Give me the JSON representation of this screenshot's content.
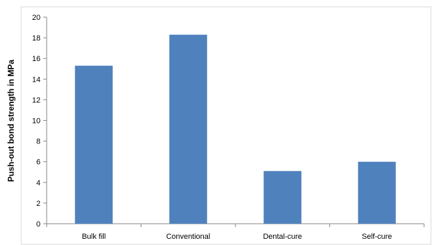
{
  "chart_data": {
    "type": "bar",
    "categories": [
      "Bulk fill",
      "Conventional",
      "Dental-cure",
      "Self-cure"
    ],
    "values": [
      15.3,
      18.3,
      5.1,
      6.0
    ],
    "title": "",
    "xlabel": "",
    "ylabel": "Push-out bond strength in MPa",
    "ylim": [
      0,
      20
    ],
    "yticks": [
      0,
      2,
      4,
      6,
      8,
      10,
      12,
      14,
      16,
      18,
      20
    ],
    "grid": false,
    "legend": "none",
    "colors": {
      "bar": "#4f81bd",
      "axis": "#868686",
      "frame": "#bfbfbf"
    }
  }
}
